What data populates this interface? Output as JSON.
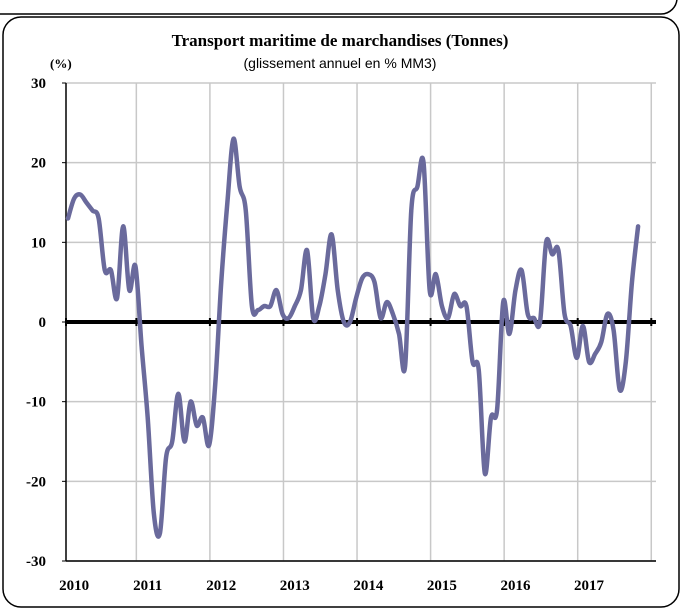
{
  "chart_data": {
    "type": "line",
    "title": "Transport maritime de marchandises (Tonnes)",
    "subtitle": "(glissement annuel en % MM3)",
    "y_label": "(%)",
    "categories": [
      null,
      "2010",
      null,
      null,
      null,
      null,
      null,
      null,
      null,
      null,
      null,
      null,
      null,
      "2011",
      null,
      null,
      null,
      null,
      null,
      null,
      null,
      null,
      null,
      null,
      null,
      "2012",
      null,
      null,
      null,
      null,
      null,
      null,
      null,
      null,
      null,
      null,
      null,
      "2013",
      null,
      null,
      null,
      null,
      null,
      null,
      null,
      null,
      null,
      null,
      null,
      "2014",
      null,
      null,
      null,
      null,
      null,
      null,
      null,
      null,
      null,
      null,
      null,
      "2015",
      null,
      null,
      null,
      null,
      null,
      null,
      null,
      null,
      null,
      null,
      null,
      "2016",
      null,
      null,
      null,
      null,
      null,
      null,
      null,
      null,
      null,
      null,
      null,
      "2017",
      null,
      null,
      null,
      null,
      null,
      null,
      null,
      null
    ],
    "series": [
      {
        "name": "Transport maritime",
        "color": "#6a6a9c",
        "values": [
          13,
          15.5,
          16,
          15,
          14,
          13,
          6.5,
          6.5,
          3,
          12,
          4,
          7,
          -3,
          -12,
          -24,
          -26.5,
          -17,
          -15,
          -9,
          -15,
          -10,
          -13,
          -12,
          -15.5,
          -8,
          5,
          15,
          23,
          17,
          14,
          2,
          1.5,
          2,
          2,
          4,
          1,
          0.5,
          2,
          4,
          9,
          0.5,
          2,
          6,
          11,
          4,
          0,
          0,
          3,
          5.5,
          6,
          5,
          0.5,
          2.5,
          1,
          -1.5,
          -5.5,
          14,
          17,
          20,
          4,
          6,
          2,
          0.5,
          3.5,
          2,
          2,
          -5,
          -6,
          -19,
          -12,
          -11,
          2.5,
          -1.5,
          4,
          6.5,
          1,
          0.5,
          0,
          10,
          8.5,
          9,
          1,
          -0.5,
          -4.5,
          -0.5,
          -5,
          -4,
          -2.5,
          1,
          -1,
          -8.5,
          -5,
          5,
          12
        ]
      }
    ],
    "ylim": [
      -30,
      30
    ],
    "yticks": [
      -30,
      -20,
      -10,
      0,
      10,
      20,
      30
    ],
    "grid": true
  }
}
